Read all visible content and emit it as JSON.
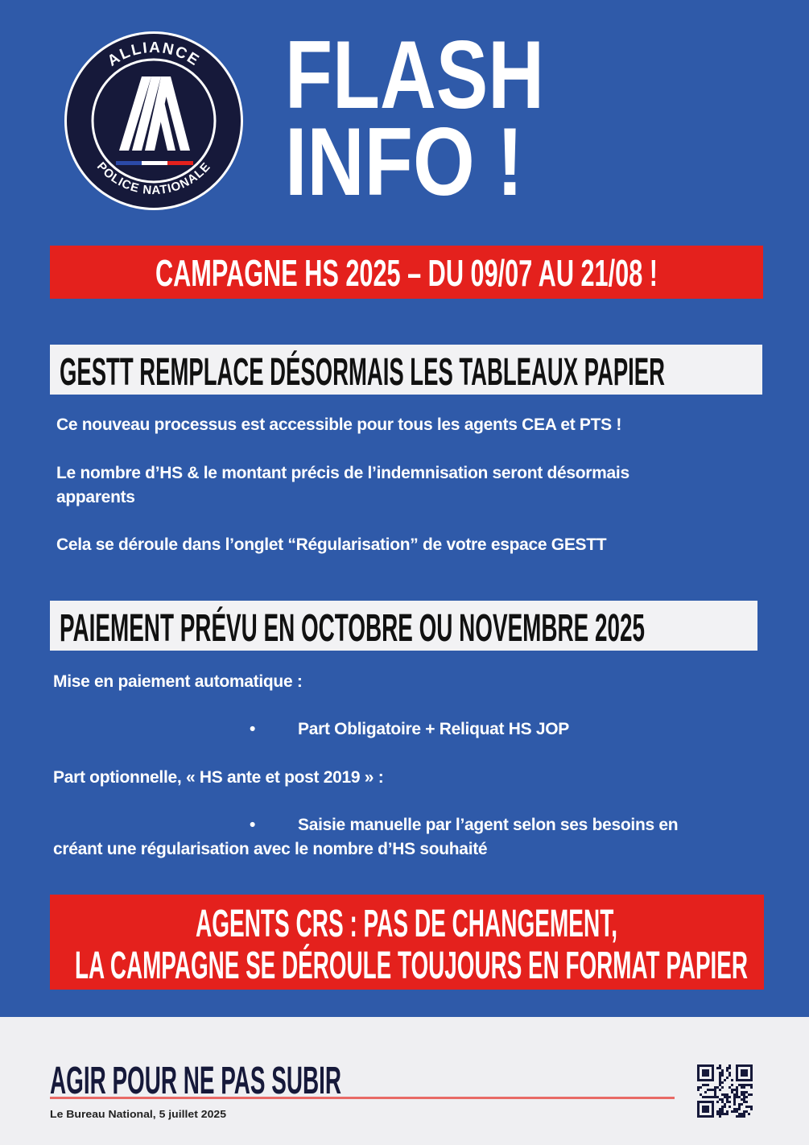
{
  "logo": {
    "top_text": "ALLIANCE",
    "bottom_text": "POLICE NATIONALE",
    "flag_colors": [
      "#2b4aa8",
      "#ffffff",
      "#e4211d"
    ]
  },
  "title": {
    "line1": "FLASH",
    "line2": "INFO !"
  },
  "banner_top": "CAMPAGNE HS 2025 – DU 09/07 AU 21/08 !",
  "section1": {
    "heading": "GESTT REMPLACE DÉSORMAIS LES TABLEAUX PAPIER",
    "paragraphs": [
      "Ce nouveau processus est accessible pour tous les agents CEA et PTS !",
      "Le nombre d’HS & le montant précis de l’indemnisation seront désormais",
      "apparents",
      "Cela se déroule dans l’onglet “Régularisation” de votre espace GESTT"
    ]
  },
  "section2": {
    "heading": "PAIEMENT PRÉVU EN OCTOBRE OU NOVEMBRE 2025",
    "intro1": "Mise en paiement automatique :",
    "bullet1": "Part Obligatoire + Reliquat HS JOP",
    "intro2": "Part optionnelle, « HS ante et post 2019 » :",
    "bullet2": "Saisie manuelle par l’agent selon ses besoins en",
    "bullet2_cont": "créant une régularisation avec le nombre d’HS souhaité",
    "bullet_glyph": "•"
  },
  "banner_bottom": {
    "line1": "AGENTS CRS : PAS DE CHANGEMENT,",
    "line2": "LA CAMPAGNE SE DÉROULE TOUJOURS EN FORMAT PAPIER"
  },
  "footer": {
    "slogan": "AGIR POUR NE PAS SUBIR",
    "signature": "Le Bureau National, 5 juillet 2025"
  },
  "colors": {
    "blue": "#2f5aa9",
    "red": "#e4211d",
    "navy": "#16193a"
  }
}
